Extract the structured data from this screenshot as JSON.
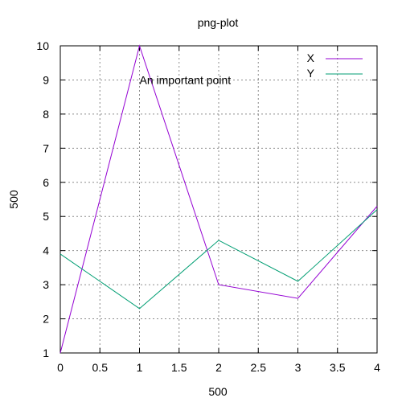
{
  "chart_data": {
    "type": "line",
    "title": "png-plot",
    "xlabel": "500",
    "ylabel": "500",
    "x": [
      0,
      1,
      2,
      3,
      4
    ],
    "series": [
      {
        "name": "X",
        "values": [
          1,
          10,
          3,
          2.6,
          5.3
        ],
        "color": "#9400d3"
      },
      {
        "name": "Y",
        "values": [
          3.9,
          2.3,
          4.3,
          3.1,
          5.2
        ],
        "color": "#009e73"
      }
    ],
    "xlim": [
      0,
      4
    ],
    "ylim": [
      1,
      10
    ],
    "xticks": [
      "0",
      "0.5",
      "1",
      "1.5",
      "2",
      "2.5",
      "3",
      "3.5",
      "4"
    ],
    "yticks": [
      "1",
      "2",
      "3",
      "4",
      "5",
      "6",
      "7",
      "8",
      "9",
      "10"
    ],
    "grid": true,
    "legend_position": "top-right",
    "annotations": [
      {
        "text": "An important point",
        "x": 1,
        "y": 9
      }
    ]
  }
}
